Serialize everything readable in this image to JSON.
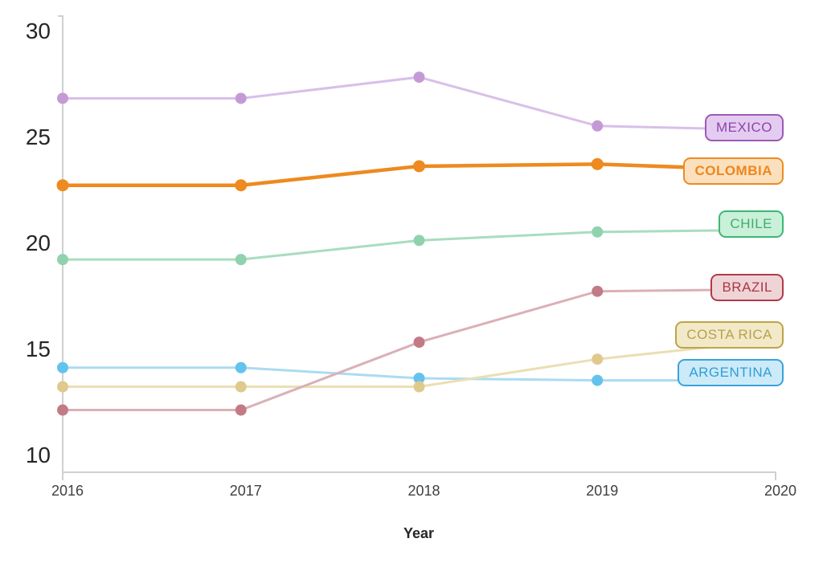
{
  "chart_data": {
    "type": "line",
    "title": "",
    "xlabel": "Year",
    "ylabel": "",
    "x": [
      2016,
      2017,
      2018,
      2019,
      2020
    ],
    "x_tick_labels": [
      "2016",
      "2017",
      "2018",
      "2019",
      "2020"
    ],
    "y_ticks": [
      30,
      25,
      20,
      15,
      10
    ],
    "ylim": [
      10,
      30
    ],
    "xlim": [
      2016,
      2020
    ],
    "grid": false,
    "legend_position": "right-end-labels",
    "axis_color": "#d0d0d0",
    "y_tick_color": "#262626",
    "x_tick_color": "#404040",
    "series": [
      {
        "name": "MEXICO",
        "values": [
          26.8,
          26.8,
          27.8,
          25.5,
          25.3
        ],
        "line_color": "#d8c0e8",
        "marker_color": "#c49ad6",
        "label_border_color": "#9c59b8",
        "label_fill": "#e3ccf0",
        "label_text_color": "#8f44ad",
        "emphasis": false
      },
      {
        "name": "COLOMBIA",
        "values": [
          22.7,
          22.7,
          23.6,
          23.7,
          23.4
        ],
        "line_color": "#ee8a1f",
        "marker_color": "#ee8a1f",
        "label_border_color": "#ef8b22",
        "label_fill": "#fbe0bd",
        "label_text_color": "#ee861b",
        "emphasis": true
      },
      {
        "name": "CHILE",
        "values": [
          19.2,
          19.2,
          20.1,
          20.5,
          20.6
        ],
        "line_color": "#a8ddc0",
        "marker_color": "#90d2ae",
        "label_border_color": "#3cb873",
        "label_fill": "#c9f0d9",
        "label_text_color": "#3fae67",
        "emphasis": false
      },
      {
        "name": "ARGENTINA",
        "values": [
          14.1,
          14.1,
          13.6,
          13.5,
          13.5
        ],
        "line_color": "#abdbf2",
        "marker_color": "#64c3ec",
        "label_border_color": "#39a3dc",
        "label_fill": "#cdeaf8",
        "label_text_color": "#2e9fd8",
        "emphasis": false
      },
      {
        "name": "COSTA RICA",
        "values": [
          13.2,
          13.2,
          13.2,
          14.5,
          15.4
        ],
        "line_color": "#eadfb4",
        "marker_color": "#dfc98c",
        "label_border_color": "#bfa348",
        "label_fill": "#f2e9c9",
        "label_text_color": "#b8a14b",
        "emphasis": false
      },
      {
        "name": "BRAZIL",
        "values": [
          12.1,
          12.1,
          15.3,
          17.7,
          17.8
        ],
        "line_color": "#dab0b7",
        "marker_color": "#c27b86",
        "label_border_color": "#b03a48",
        "label_fill": "#efd4d7",
        "label_text_color": "#ab3745",
        "emphasis": false
      }
    ]
  }
}
